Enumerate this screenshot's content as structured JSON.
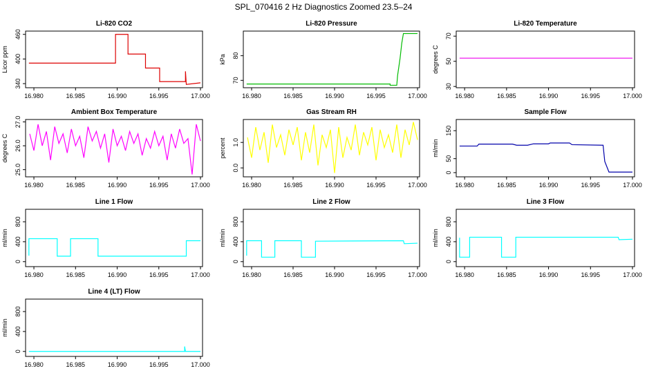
{
  "title": "SPL_070416  2 Hz Diagnostics Zoomed 23.5–24",
  "chart_data": [
    {
      "type": "line",
      "title": "Li-820 CO2",
      "ylabel": "Licor ppm",
      "color": "#dd0000",
      "xlim": [
        16.979,
        17.00025
      ],
      "xticks": [
        {
          "value": 16.98,
          "label": "16.980"
        },
        16.985,
        {
          "value": 16.99,
          "label": "16.990"
        },
        16.995,
        {
          "value": 17,
          "label": "17.000"
        }
      ],
      "ylim": [
        330,
        468
      ],
      "yticks": [
        340,
        400,
        460
      ],
      "x": [
        16.9794,
        16.9898,
        16.9898,
        16.9913,
        16.9913,
        16.9934,
        16.9934,
        16.9951,
        16.9951,
        16.9982,
        16.9982,
        16.9983,
        17.0
      ],
      "values": [
        390,
        390,
        460,
        460,
        412,
        412,
        378,
        378,
        345,
        345,
        370,
        338,
        342
      ]
    },
    {
      "type": "line",
      "title": "Li-820 Pressure",
      "ylabel": "kPa",
      "color": "#00bb00",
      "xlim": [
        16.979,
        17.00025
      ],
      "xticks": [
        {
          "value": 16.98,
          "label": "16.980"
        },
        16.985,
        {
          "value": 16.99,
          "label": "16.990"
        },
        16.995,
        {
          "value": 17,
          "label": "17.000"
        }
      ],
      "ylim": [
        67,
        90
      ],
      "yticks": [
        70,
        80
      ],
      "x": [
        16.9794,
        16.9967,
        16.9967,
        16.9975,
        16.9976,
        16.9979,
        16.9981,
        16.9983,
        17.0
      ],
      "values": [
        68.5,
        68.5,
        68,
        68,
        72,
        79,
        85,
        89,
        89
      ]
    },
    {
      "type": "line",
      "title": "Li-820 Temperature",
      "ylabel": "degrees C",
      "color": "#ee00ee",
      "xlim": [
        16.979,
        17.00025
      ],
      "xticks": [
        {
          "value": 16.98,
          "label": "16.980"
        },
        16.985,
        {
          "value": 16.99,
          "label": "16.990"
        },
        16.995,
        {
          "value": 17,
          "label": "17.000"
        }
      ],
      "ylim": [
        29,
        74
      ],
      "yticks": [
        30,
        50,
        70
      ],
      "x": [
        16.9794,
        17.0
      ],
      "values": [
        52.5,
        52.5
      ]
    },
    {
      "type": "line",
      "title": "Ambient Box Temperature",
      "ylabel": "degrees C",
      "color": "#ff00ff",
      "xlim": [
        16.979,
        17.00025
      ],
      "xticks": [
        {
          "value": 16.98,
          "label": "16.980"
        },
        16.985,
        {
          "value": 16.99,
          "label": "16.990"
        },
        16.995,
        {
          "value": 17,
          "label": "17.000"
        }
      ],
      "ylim": [
        24.7,
        27.1
      ],
      "yticks": [
        {
          "value": 25,
          "label": "25.0"
        },
        {
          "value": 26,
          "label": "26.0"
        },
        {
          "value": 27,
          "label": "27.0"
        }
      ],
      "x": [
        16.9795,
        16.98,
        16.9805,
        16.981,
        16.9815,
        16.982,
        16.9825,
        16.983,
        16.9835,
        16.984,
        16.9845,
        16.985,
        16.9855,
        16.986,
        16.9865,
        16.987,
        16.9875,
        16.988,
        16.9885,
        16.989,
        16.9895,
        16.99,
        16.9905,
        16.991,
        16.9915,
        16.992,
        16.9925,
        16.993,
        16.9935,
        16.994,
        16.9945,
        16.995,
        16.9955,
        16.996,
        16.9965,
        16.997,
        16.9975,
        16.998,
        16.9985,
        16.999,
        16.9995,
        17.0
      ],
      "values": [
        26.5,
        25.8,
        26.9,
        26.0,
        26.6,
        25.4,
        26.8,
        26.1,
        26.5,
        25.7,
        26.7,
        26.0,
        26.4,
        25.5,
        26.8,
        26.2,
        26.6,
        25.9,
        26.5,
        25.3,
        26.7,
        26.0,
        26.4,
        25.8,
        26.6,
        26.1,
        26.5,
        25.6,
        26.3,
        25.9,
        26.6,
        26.0,
        26.4,
        25.4,
        26.5,
        25.9,
        26.7,
        26.1,
        26.3,
        24.8,
        26.9,
        26.2
      ]
    },
    {
      "type": "line",
      "title": "Gas Stream RH",
      "ylabel": "percent",
      "color": "#ffff00",
      "xlim": [
        16.979,
        17.00025
      ],
      "xticks": [
        {
          "value": 16.98,
          "label": "16.980"
        },
        16.985,
        {
          "value": 16.99,
          "label": "16.990"
        },
        16.995,
        {
          "value": 17,
          "label": "17.000"
        }
      ],
      "ylim": [
        -0.35,
        1.9
      ],
      "yticks": [
        {
          "value": 0,
          "label": "0.0"
        },
        {
          "value": 1,
          "label": "1.0"
        }
      ],
      "x": [
        16.9795,
        16.98,
        16.9805,
        16.981,
        16.9815,
        16.982,
        16.9825,
        16.983,
        16.9835,
        16.984,
        16.9845,
        16.985,
        16.9855,
        16.986,
        16.9865,
        16.987,
        16.9875,
        16.988,
        16.9885,
        16.989,
        16.9895,
        16.99,
        16.9905,
        16.991,
        16.9915,
        16.992,
        16.9925,
        16.993,
        16.9935,
        16.994,
        16.9945,
        16.995,
        16.9955,
        16.996,
        16.9965,
        16.997,
        16.9975,
        16.998,
        16.9985,
        16.999,
        16.9995,
        17.0
      ],
      "values": [
        1.2,
        0.4,
        1.6,
        0.7,
        1.4,
        0.2,
        1.7,
        0.8,
        1.3,
        0.5,
        1.5,
        0.9,
        1.6,
        0.3,
        1.4,
        0.6,
        1.7,
        0.1,
        1.3,
        0.8,
        1.5,
        -0.2,
        1.6,
        0.4,
        1.2,
        0.7,
        1.7,
        0.5,
        1.4,
        0.9,
        1.6,
        0.3,
        1.5,
        0.8,
        1.3,
        0.6,
        1.7,
        0.4,
        1.5,
        0.9,
        1.8,
        1.1
      ]
    },
    {
      "type": "line",
      "title": "Sample Flow",
      "ylabel": "ml/min",
      "color": "#0000aa",
      "xlim": [
        16.979,
        17.00025
      ],
      "xticks": [
        {
          "value": 16.98,
          "label": "16.980"
        },
        16.985,
        {
          "value": 16.99,
          "label": "16.990"
        },
        16.995,
        {
          "value": 17,
          "label": "17.000"
        }
      ],
      "ylim": [
        -15,
        190
      ],
      "yticks": [
        0,
        50,
        150
      ],
      "x": [
        16.9794,
        16.9815,
        16.9817,
        16.9857,
        16.9862,
        16.9875,
        16.9882,
        16.99,
        16.9902,
        16.9925,
        16.9928,
        16.9965,
        16.9967,
        16.9972,
        17.0
      ],
      "values": [
        95,
        95,
        102,
        102,
        98,
        98,
        103,
        103,
        106,
        106,
        100,
        98,
        40,
        2,
        2
      ]
    },
    {
      "type": "line",
      "title": "Line 1 Flow",
      "ylabel": "ml/min",
      "color": "#00ffff",
      "xlim": [
        16.979,
        17.00025
      ],
      "xticks": [
        {
          "value": 16.98,
          "label": "16.980"
        },
        16.985,
        {
          "value": 16.99,
          "label": "16.990"
        },
        16.995,
        {
          "value": 17,
          "label": "17.000"
        }
      ],
      "ylim": [
        -100,
        1050
      ],
      "yticks": [
        0,
        400,
        800
      ],
      "x": [
        16.9794,
        16.9794,
        16.9828,
        16.9828,
        16.9844,
        16.9844,
        16.9877,
        16.9877,
        16.9983,
        16.9983,
        17.0
      ],
      "values": [
        120,
        460,
        460,
        110,
        110,
        460,
        460,
        110,
        110,
        420,
        420
      ]
    },
    {
      "type": "line",
      "title": "Line 2 Flow",
      "ylabel": "ml/min",
      "color": "#00ffff",
      "xlim": [
        16.979,
        17.00025
      ],
      "xticks": [
        {
          "value": 16.98,
          "label": "16.980"
        },
        16.985,
        {
          "value": 16.99,
          "label": "16.990"
        },
        16.995,
        {
          "value": 17,
          "label": "17.000"
        }
      ],
      "ylim": [
        -100,
        1050
      ],
      "yticks": [
        0,
        400,
        800
      ],
      "x": [
        16.9794,
        16.9794,
        16.9812,
        16.9812,
        16.9828,
        16.9828,
        16.986,
        16.986,
        16.9877,
        16.9877,
        16.9983,
        16.9984,
        17.0
      ],
      "values": [
        120,
        420,
        420,
        90,
        90,
        420,
        420,
        90,
        90,
        410,
        420,
        360,
        370
      ]
    },
    {
      "type": "line",
      "title": "Line 3 Flow",
      "ylabel": "ml/min",
      "color": "#00ffff",
      "xlim": [
        16.979,
        17.00025
      ],
      "xticks": [
        {
          "value": 16.98,
          "label": "16.980"
        },
        16.985,
        {
          "value": 16.99,
          "label": "16.990"
        },
        16.995,
        {
          "value": 17,
          "label": "17.000"
        }
      ],
      "ylim": [
        -100,
        1050
      ],
      "yticks": [
        0,
        400,
        800
      ],
      "x": [
        16.9794,
        16.9794,
        16.9806,
        16.9806,
        16.9844,
        16.9844,
        16.9861,
        16.9861,
        16.9983,
        16.9984,
        17.0
      ],
      "values": [
        480,
        90,
        90,
        490,
        490,
        90,
        90,
        490,
        490,
        440,
        450
      ]
    },
    {
      "type": "line",
      "title": "Line 4 (LT) Flow",
      "ylabel": "ml/min",
      "color": "#00ffff",
      "xlim": [
        16.979,
        17.00025
      ],
      "xticks": [
        {
          "value": 16.98,
          "label": "16.980"
        },
        16.985,
        {
          "value": 16.99,
          "label": "16.990"
        },
        16.995,
        {
          "value": 17,
          "label": "17.000"
        }
      ],
      "ylim": [
        -100,
        1050
      ],
      "yticks": [
        0,
        400,
        800
      ],
      "x": [
        16.9794,
        16.9981,
        16.9981,
        16.9982,
        17.0
      ],
      "values": [
        0,
        0,
        100,
        0,
        0
      ]
    }
  ]
}
